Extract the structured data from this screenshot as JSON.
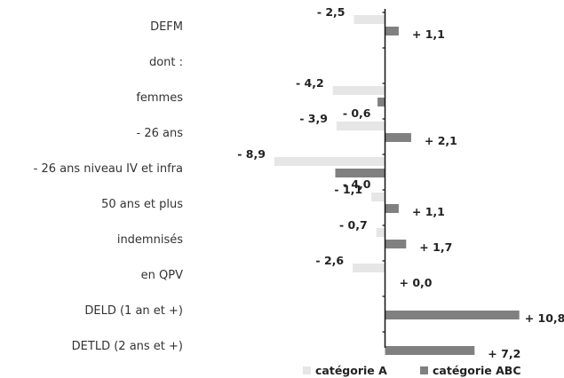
{
  "chart_data": {
    "type": "bar",
    "orientation": "horizontal",
    "categories": [
      "DEFM",
      "dont :",
      "femmes",
      "- 26 ans",
      "- 26 ans niveau IV et infra",
      "50 ans et plus",
      "indemnisés",
      "en QPV",
      "DELD (1 an et +)",
      "DETLD (2 ans et +)"
    ],
    "series": [
      {
        "name": "catégorie A",
        "color": "#e6e6e6",
        "values": [
          -2.5,
          null,
          -4.2,
          -3.9,
          -8.9,
          -1.1,
          -0.7,
          -2.6,
          null,
          null
        ],
        "labels": [
          "- 2,5",
          "",
          "- 4,2",
          "- 3,9",
          "- 8,9",
          "- 1,1",
          "- 0,7",
          "- 2,6",
          "",
          ""
        ]
      },
      {
        "name": "catégorie ABC",
        "color": "#808080",
        "values": [
          1.1,
          null,
          -0.6,
          2.1,
          -4.0,
          1.1,
          1.7,
          0.0,
          10.8,
          7.2
        ],
        "labels": [
          "+ 1,1",
          "",
          "- 0,6",
          "+ 2,1",
          "- 4,0",
          "+ 1,1",
          "+ 1,7",
          "+ 0,0",
          "+ 10,8",
          "+ 7,2"
        ]
      }
    ],
    "xlim": [
      -9,
      11
    ],
    "grid": false,
    "legend": "bottom"
  }
}
